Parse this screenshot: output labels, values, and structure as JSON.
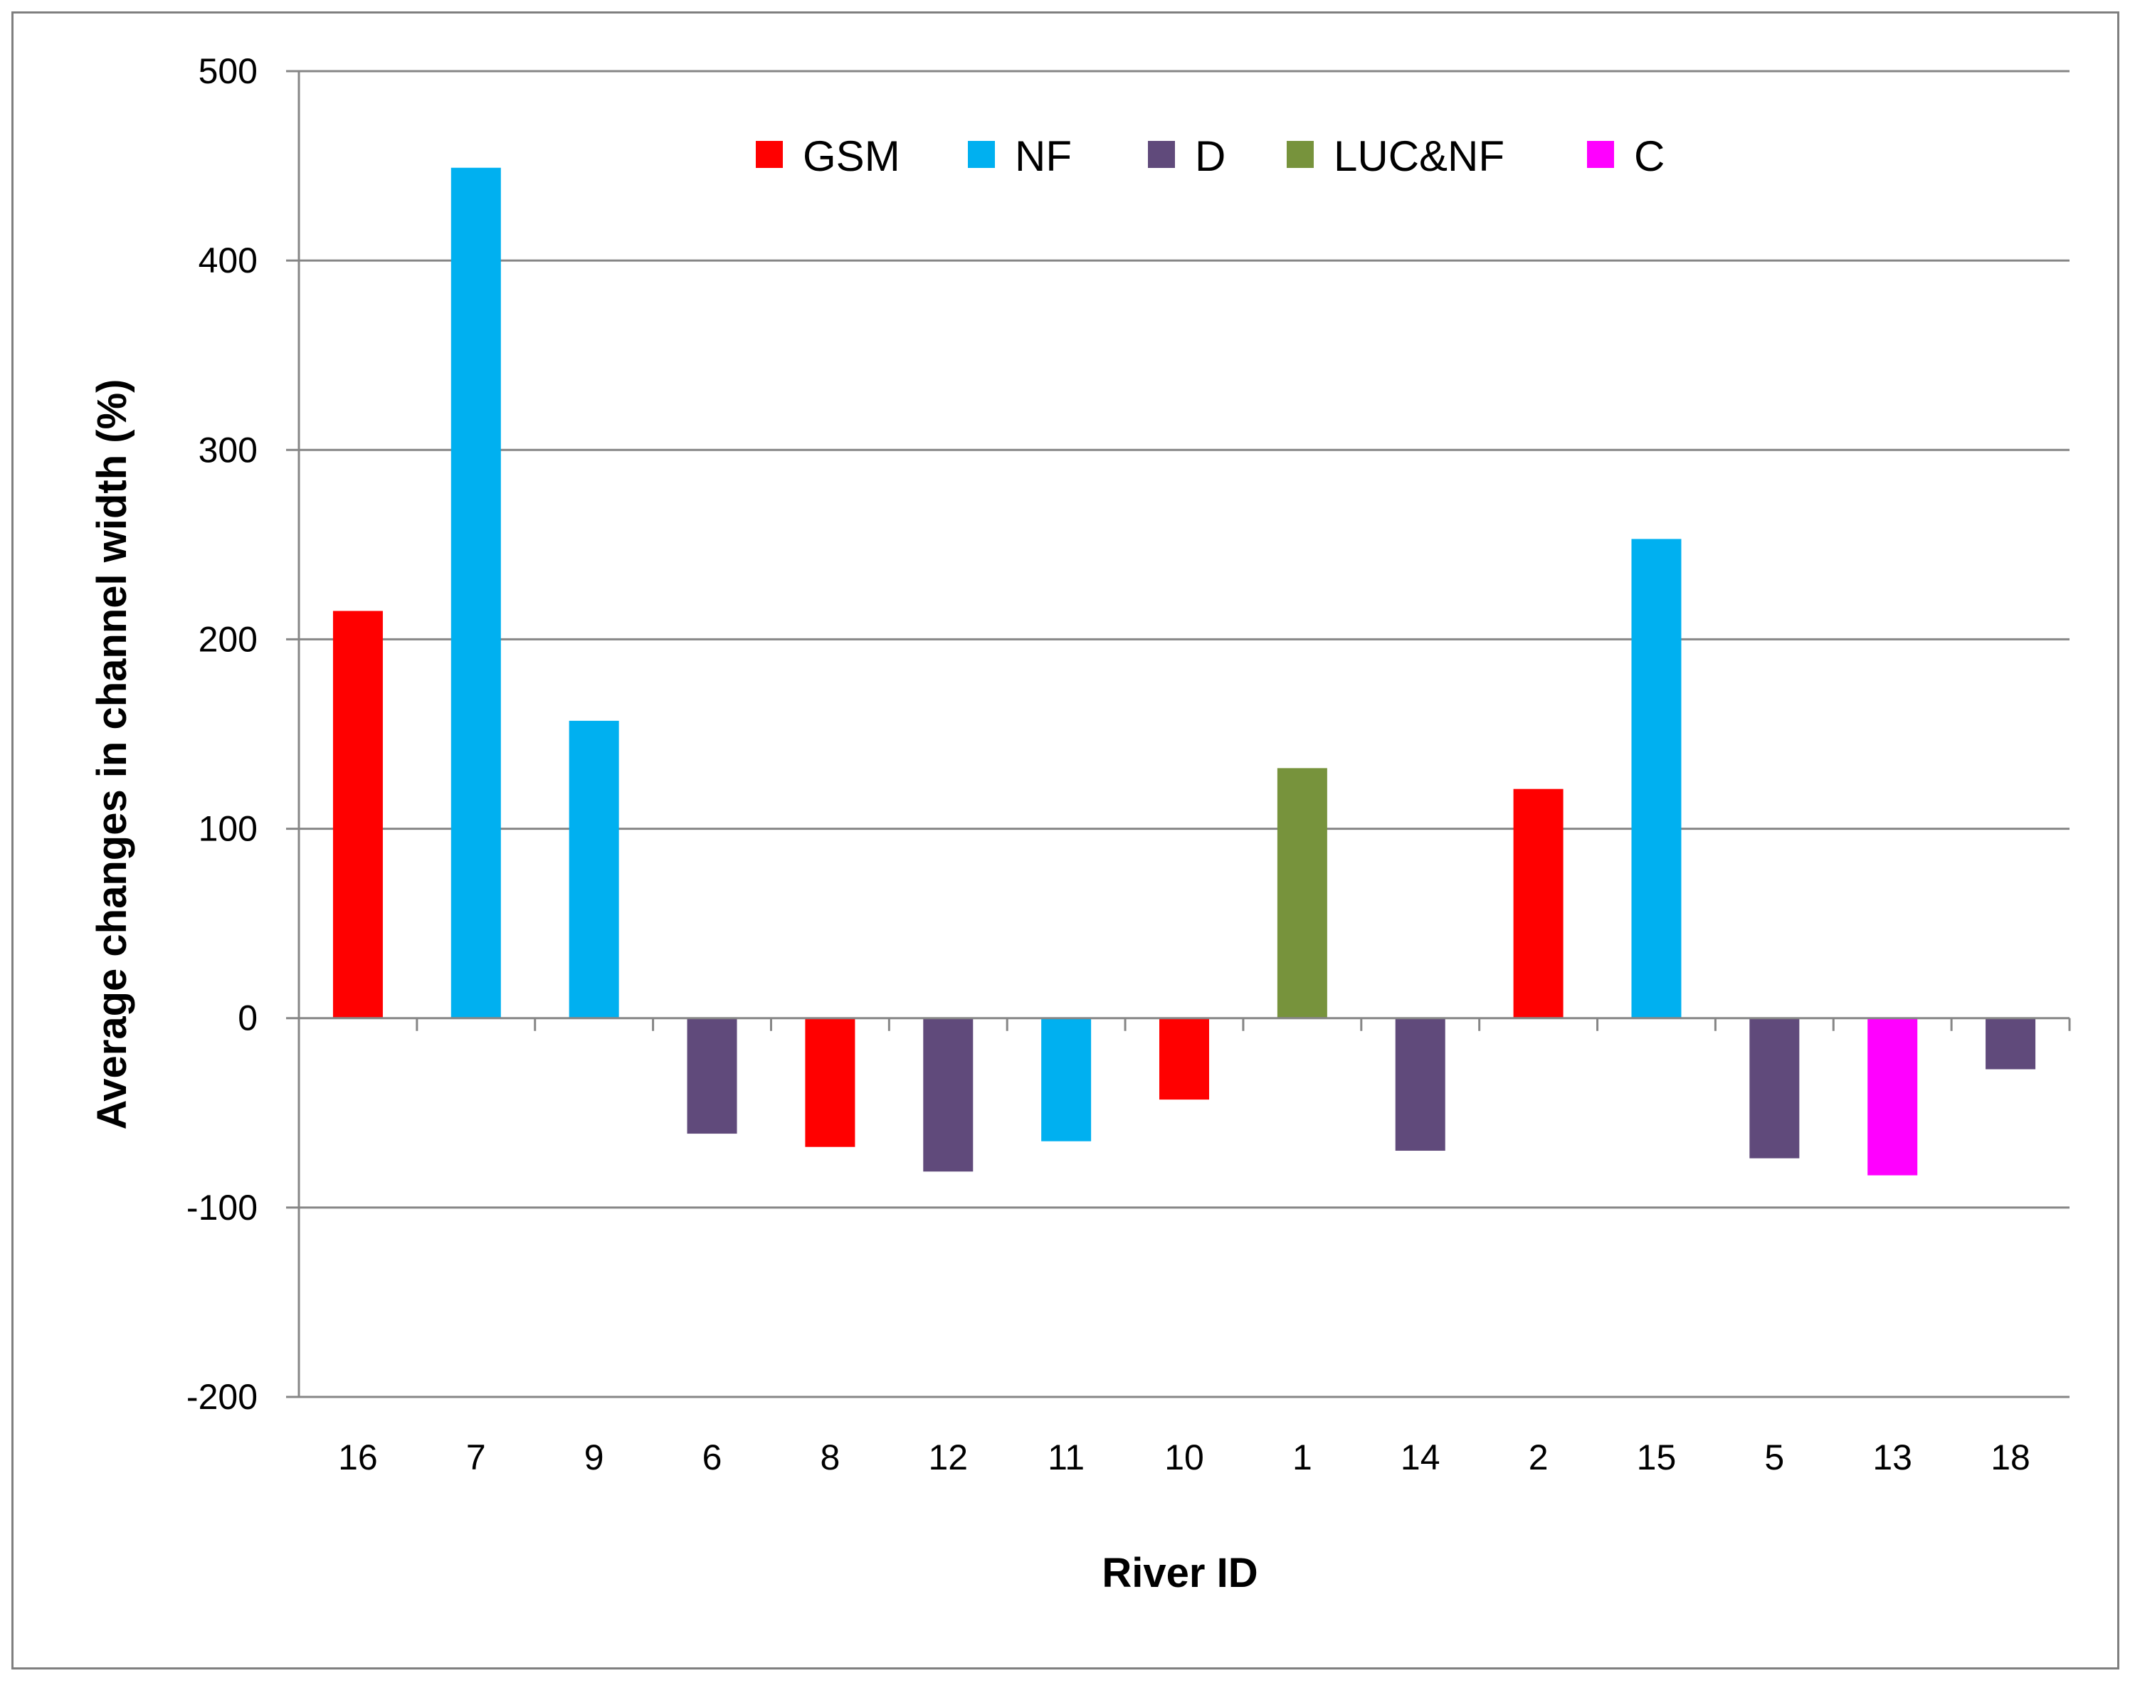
{
  "chart_data": {
    "type": "bar",
    "title": "",
    "xlabel": "River ID",
    "ylabel": "Average changes in channel width (%)",
    "ylim": [
      -200,
      500
    ],
    "yticks": [
      500,
      400,
      300,
      200,
      100,
      0,
      -100,
      -200
    ],
    "grid": true,
    "legend_position": "top-center",
    "categories": [
      "16",
      "7",
      "9",
      "6",
      "8",
      "12",
      "11",
      "10",
      "1",
      "14",
      "2",
      "15",
      "5",
      "13",
      "18"
    ],
    "values": [
      215,
      449,
      157,
      -61,
      -68,
      -81,
      -65,
      -43,
      132,
      -70,
      121,
      253,
      -74,
      -83,
      -27
    ],
    "bar_groups": [
      "GSM",
      "NF",
      "NF",
      "D",
      "GSM",
      "D",
      "NF",
      "GSM",
      "LUC&NF",
      "D",
      "GSM",
      "NF",
      "D",
      "C",
      "D"
    ],
    "legend": [
      {
        "name": "GSM",
        "color": "#ff0000"
      },
      {
        "name": "NF",
        "color": "#00b0f0"
      },
      {
        "name": "D",
        "color": "#604a7b"
      },
      {
        "name": "LUC&NF",
        "color": "#77933c"
      },
      {
        "name": "C",
        "color": "#ff00ff"
      }
    ]
  }
}
